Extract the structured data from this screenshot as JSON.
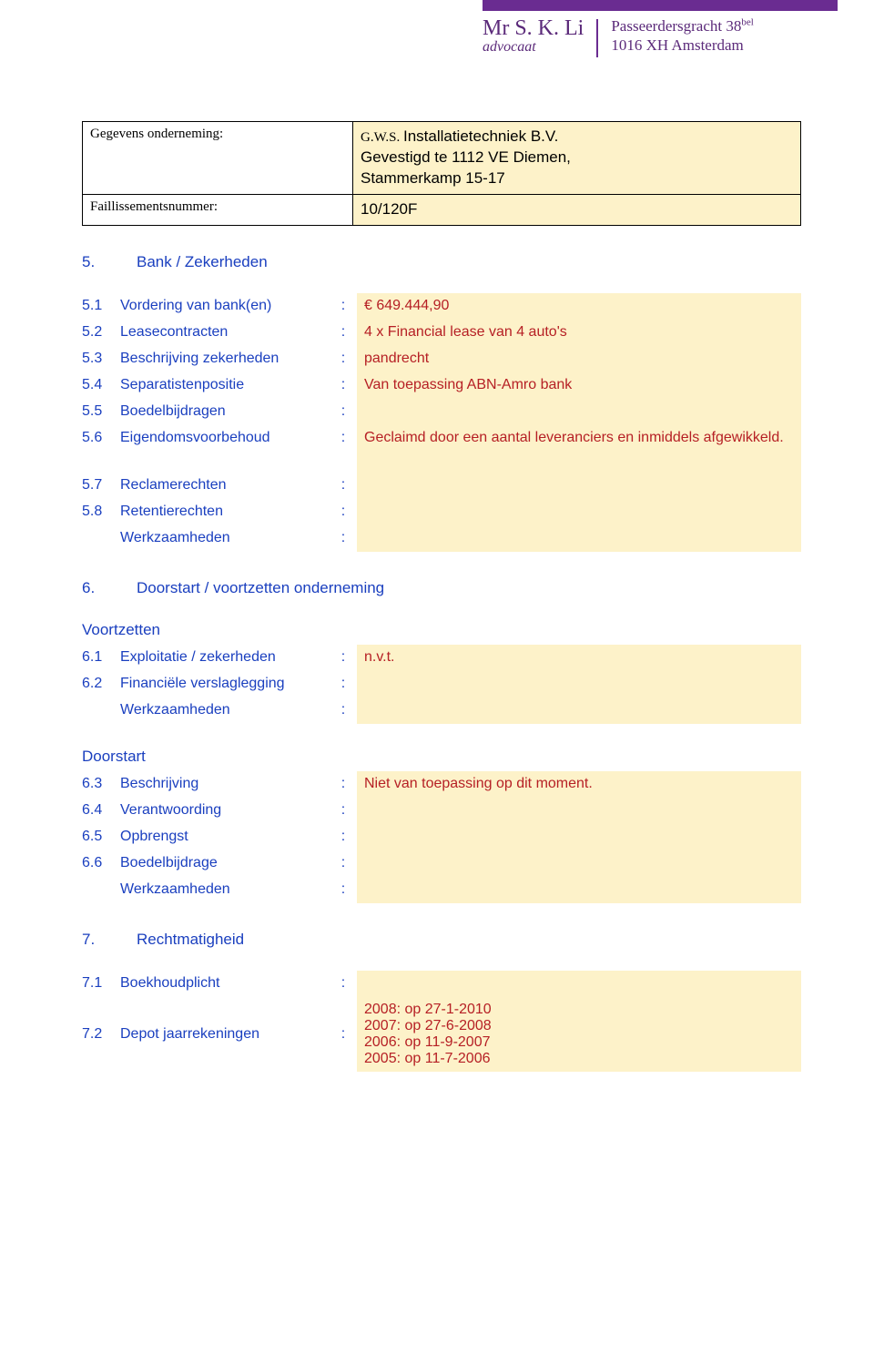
{
  "letterhead": {
    "name": "Mr S. K. Li",
    "subtitle": "advocaat",
    "addr1": "Passeerdersgracht 38",
    "addr1_sup": "bel",
    "addr2": "1016 XH  Amsterdam"
  },
  "company_box": {
    "row1_label": "Gegevens onderneming:",
    "row1_line1": "G.W.S. Installatietechniek B.V.",
    "row1_line2": "Gevestigd te 1112 VE Diemen,",
    "row1_line3": "Stammerkamp 15-17",
    "row2_label": "Faillissementsnummer:",
    "row2_value": "10/120F"
  },
  "sec5": {
    "num": "5.",
    "title": "Bank / Zekerheden",
    "i1_num": "5.1",
    "i1_lab": "Vordering van bank(en)",
    "i1_val": "€ 649.444,90",
    "i2_num": "5.2",
    "i2_lab": "Leasecontracten",
    "i2_val": "4 x Financial lease van 4 auto's",
    "i3_num": "5.3",
    "i3_lab": "Beschrijving zekerheden",
    "i3_val": "pandrecht",
    "i4_num": "5.4",
    "i4_lab": "Separatistenpositie",
    "i4_val": "Van toepassing ABN-Amro bank",
    "i5_num": "5.5",
    "i5_lab": "Boedelbijdragen",
    "i5_val": "",
    "i6_num": "5.6",
    "i6_lab": "Eigendomsvoorbehoud",
    "i6_val": "Geclaimd door een aantal leveranciers en inmiddels afgewikkeld.",
    "i7_num": "5.7",
    "i7_lab": "Reclamerechten",
    "i7_val": "",
    "i8_num": "5.8",
    "i8_lab": "Retentierechten",
    "i8_val": "",
    "i9_lab": "Werkzaamheden",
    "i9_val": ""
  },
  "sec6": {
    "num": "6.",
    "title": "Doorstart / voortzetten onderneming",
    "sub1": "Voortzetten",
    "i1_num": "6.1",
    "i1_lab": "Exploitatie / zekerheden",
    "i1_val": "n.v.t.",
    "i2_num": "6.2",
    "i2_lab": "Financiële verslaglegging",
    "i2_val": "",
    "i3_lab": "Werkzaamheden",
    "i3_val": "",
    "sub2": "Doorstart",
    "i4_num": "6.3",
    "i4_lab": "Beschrijving",
    "i4_val": "Niet van toepassing op dit moment.",
    "i5_num": "6.4",
    "i5_lab": "Verantwoording",
    "i5_val": "",
    "i6_num": "6.5",
    "i6_lab": "Opbrengst",
    "i6_val": "",
    "i7_num": "6.6",
    "i7_lab": "Boedelbijdrage",
    "i7_val": "",
    "i8_lab": "Werkzaamheden",
    "i8_val": ""
  },
  "sec7": {
    "num": "7.",
    "title": "Rechtmatigheid",
    "i1_num": "7.1",
    "i1_lab": "Boekhoudplicht",
    "i1_val": "",
    "i2_num": "7.2",
    "i2_lab": "Depot jaarrekeningen",
    "i2_l1": "2008: op 27-1-2010",
    "i2_l2": "2007: op 27-6-2008",
    "i2_l3": "2006: op 11-9-2007",
    "i2_l4": "2005: op 11-7-2006"
  }
}
